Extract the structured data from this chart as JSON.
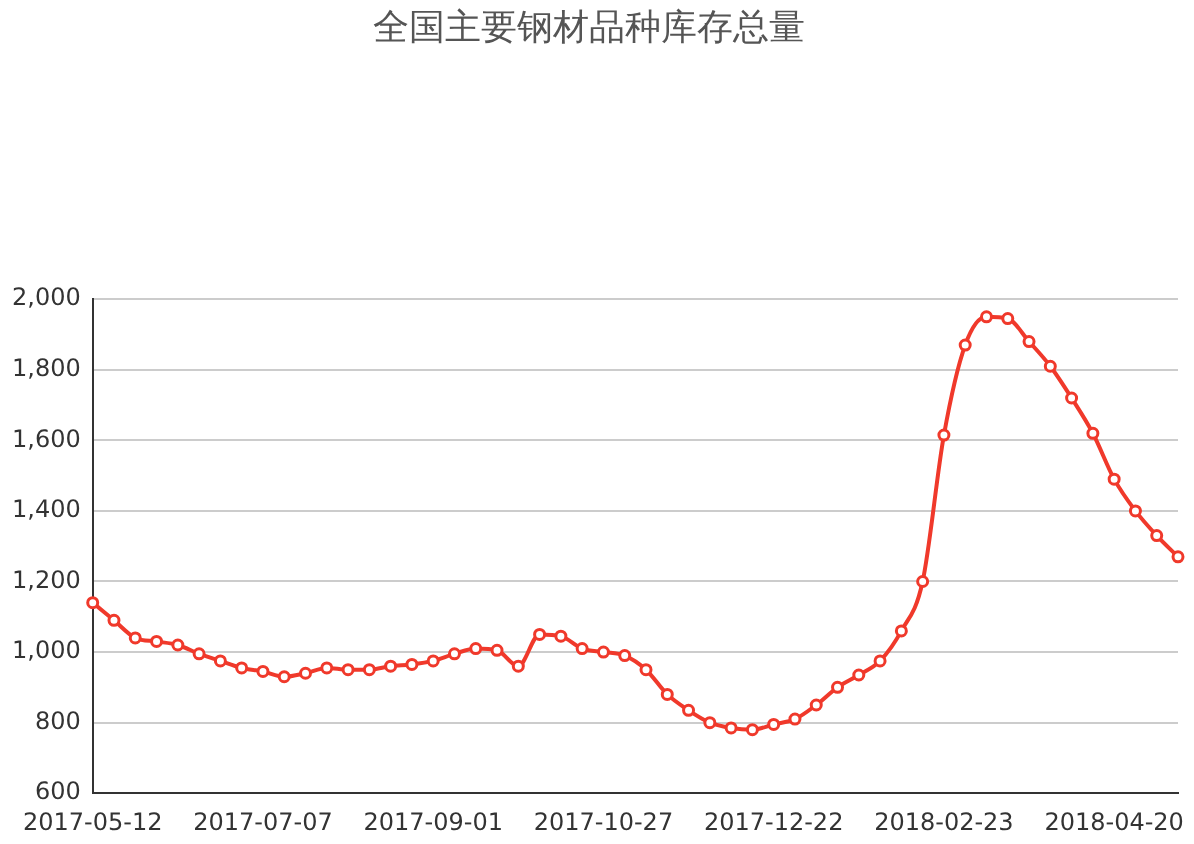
{
  "chart_data": {
    "type": "line",
    "title": "全国主要钢材品种库存总量",
    "categories": [
      "2017-05-12",
      null,
      null,
      null,
      null,
      null,
      null,
      null,
      "2017-07-07",
      null,
      null,
      null,
      null,
      null,
      null,
      null,
      "2017-09-01",
      null,
      null,
      null,
      null,
      null,
      null,
      null,
      "2017-10-27",
      null,
      null,
      null,
      null,
      null,
      null,
      null,
      "2017-12-22",
      null,
      null,
      null,
      null,
      null,
      null,
      null,
      "2018-02-23",
      null,
      null,
      null,
      null,
      null,
      null,
      null,
      "2018-04-20",
      null,
      null,
      null
    ],
    "series": [
      {
        "color": "#f0392b",
        "values": [
          1140,
          1090,
          1040,
          1030,
          1020,
          995,
          975,
          955,
          945,
          930,
          940,
          955,
          950,
          950,
          960,
          965,
          975,
          995,
          1010,
          1005,
          960,
          1050,
          1045,
          1010,
          1000,
          990,
          950,
          880,
          835,
          800,
          785,
          780,
          795,
          810,
          850,
          900,
          935,
          975,
          1060,
          1200,
          1615,
          1870,
          1950,
          1945,
          1880,
          1810,
          1720,
          1620,
          1490,
          1400,
          1330,
          1270
        ]
      }
    ],
    "ylim": [
      600,
      2000
    ],
    "yticks": [
      {
        "value": 600,
        "label": "600"
      },
      {
        "value": 800,
        "label": "800"
      },
      {
        "value": 1000,
        "label": "1,000"
      },
      {
        "value": 1200,
        "label": "1,200"
      },
      {
        "value": 1400,
        "label": "1,400"
      },
      {
        "value": 1600,
        "label": "1,600"
      },
      {
        "value": 1800,
        "label": "1,800"
      },
      {
        "value": 2000,
        "label": "2,000"
      }
    ],
    "grid": "y",
    "legend": false,
    "marker": "circle",
    "line_style": "solid"
  }
}
